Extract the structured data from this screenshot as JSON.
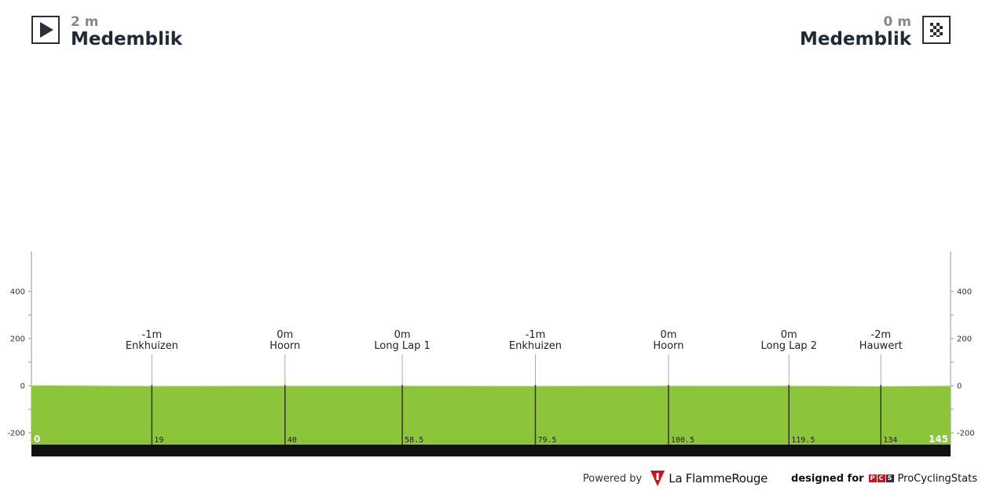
{
  "header": {
    "start": {
      "altitude": "2 m",
      "name": "Medemblik",
      "icon": "play-icon"
    },
    "finish": {
      "altitude": "0 m",
      "name": "Medemblik",
      "icon": "checkered-flag-icon"
    }
  },
  "chart_data": {
    "type": "area",
    "xlim": [
      0,
      145
    ],
    "ylim": [
      -250,
      500
    ],
    "y_ticks": [
      -200,
      0,
      200,
      400
    ],
    "profile_x": [
      0,
      19,
      40,
      58.5,
      79.5,
      100.5,
      119.5,
      134,
      145
    ],
    "profile_y": [
      2,
      -1,
      0,
      0,
      -1,
      0,
      0,
      -2,
      0
    ],
    "waypoints": [
      {
        "km": 19,
        "km_label": "19",
        "altitude": "-1m",
        "name": "Enkhuizen"
      },
      {
        "km": 40,
        "km_label": "40",
        "altitude": "0m",
        "name": "Hoorn"
      },
      {
        "km": 58.5,
        "km_label": "58.5",
        "altitude": "0m",
        "name": "Long Lap 1"
      },
      {
        "km": 79.5,
        "km_label": "79.5",
        "altitude": "-1m",
        "name": "Enkhuizen"
      },
      {
        "km": 100.5,
        "km_label": "100.5",
        "altitude": "0m",
        "name": "Hoorn"
      },
      {
        "km": 119.5,
        "km_label": "119.5",
        "altitude": "0m",
        "name": "Long Lap 2"
      },
      {
        "km": 134,
        "km_label": "134",
        "altitude": "-2m",
        "name": "Hauwert"
      }
    ],
    "start_km_label": "0",
    "finish_km_label": "145",
    "colors": {
      "profile_fill": "#8cc43a",
      "profile_top": "#d7ecae",
      "base_band": "#111111",
      "axis": "#999999",
      "marker_line": "#333333"
    }
  },
  "footer": {
    "powered_by": "Powered by",
    "lfr_name": "La FlammeRouge",
    "designed_for": "designed for",
    "pcs_letters": [
      "P",
      "C",
      "S"
    ],
    "pcs_name": "ProCyclingStats"
  }
}
